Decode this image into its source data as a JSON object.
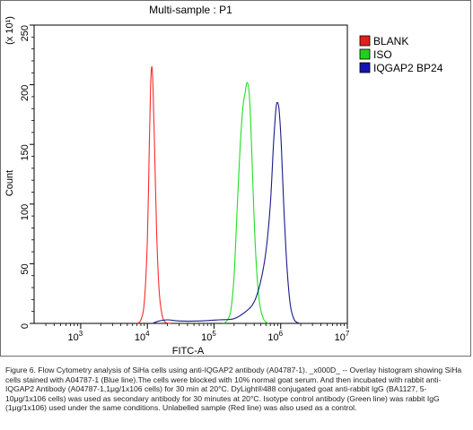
{
  "chart_data": {
    "type": "line",
    "title": "Multi-sample : P1",
    "xlabel": "FITC-A",
    "ylabel": "Count",
    "y_multiplier": "(x 10¹)",
    "xscale": "log",
    "xlim": [
      200,
      10000000
    ],
    "ylim": [
      0,
      250
    ],
    "x_ticks": [
      {
        "value": 1000,
        "label": "10",
        "exp": "3"
      },
      {
        "value": 10000,
        "label": "10",
        "exp": "4"
      },
      {
        "value": 100000,
        "label": "10",
        "exp": "5"
      },
      {
        "value": 1000000,
        "label": "10",
        "exp": "6"
      },
      {
        "value": 10000000,
        "label": "10",
        "exp": "7"
      }
    ],
    "y_ticks": [
      0,
      50,
      100,
      150,
      200,
      250
    ],
    "grid": false,
    "legend_position": "right",
    "series": [
      {
        "name": "BLANK",
        "color": "#ff2a2a",
        "legend_fill": "#e0201b",
        "points": [
          [
            7000,
            0
          ],
          [
            8000,
            3
          ],
          [
            9000,
            18
          ],
          [
            10000,
            70
          ],
          [
            10700,
            150
          ],
          [
            11200,
            200
          ],
          [
            11700,
            215
          ],
          [
            12200,
            195
          ],
          [
            12800,
            150
          ],
          [
            13800,
            75
          ],
          [
            15000,
            28
          ],
          [
            16500,
            8
          ],
          [
            18500,
            1
          ],
          [
            22000,
            0
          ]
        ]
      },
      {
        "name": "ISO",
        "color": "#22dd22",
        "legend_fill": "#20d020",
        "points": [
          [
            140000,
            0
          ],
          [
            160000,
            3
          ],
          [
            180000,
            12
          ],
          [
            200000,
            40
          ],
          [
            220000,
            90
          ],
          [
            245000,
            145
          ],
          [
            270000,
            180
          ],
          [
            290000,
            192
          ],
          [
            315000,
            202
          ],
          [
            340000,
            190
          ],
          [
            365000,
            150
          ],
          [
            395000,
            95
          ],
          [
            430000,
            50
          ],
          [
            480000,
            18
          ],
          [
            550000,
            4
          ],
          [
            650000,
            0
          ]
        ]
      },
      {
        "name": "IQGAP2 BP24",
        "color": "#1a1a8c",
        "legend_fill": "#1414b0",
        "points": [
          [
            12000,
            0
          ],
          [
            15000,
            2
          ],
          [
            20000,
            3
          ],
          [
            30000,
            2
          ],
          [
            60000,
            2
          ],
          [
            120000,
            3
          ],
          [
            200000,
            4
          ],
          [
            300000,
            10
          ],
          [
            400000,
            18
          ],
          [
            500000,
            35
          ],
          [
            600000,
            60
          ],
          [
            700000,
            100
          ],
          [
            780000,
            150
          ],
          [
            850000,
            180
          ],
          [
            900000,
            185
          ],
          [
            950000,
            178
          ],
          [
            1020000,
            150
          ],
          [
            1120000,
            95
          ],
          [
            1250000,
            45
          ],
          [
            1400000,
            15
          ],
          [
            1600000,
            3
          ],
          [
            1900000,
            0
          ]
        ]
      }
    ]
  },
  "caption": "Figure 6. Flow Cytometry analysis of SiHa cells using anti-IQGAP2 antibody (A04787-1). _x000D_ -- Overlay histogram showing SiHa cells stained with A04787-1 (Blue line).The cells were blocked with 10% normal goat serum. And then incubated with rabbit anti-IQGAP2 Antibody (A04787-1,1μg/1x106 cells) for 30 min at 20°C. DyLight®488 conjugated goat anti-rabbit IgG (BA1127, 5-10μg/1x106 cells) was used as secondary antibody for 30 minutes at 20°C. Isotype control antibody (Green line) was rabbit IgG (1μg/1x106) used under the same conditions. Unlabelled sample (Red line) was also used as a control."
}
